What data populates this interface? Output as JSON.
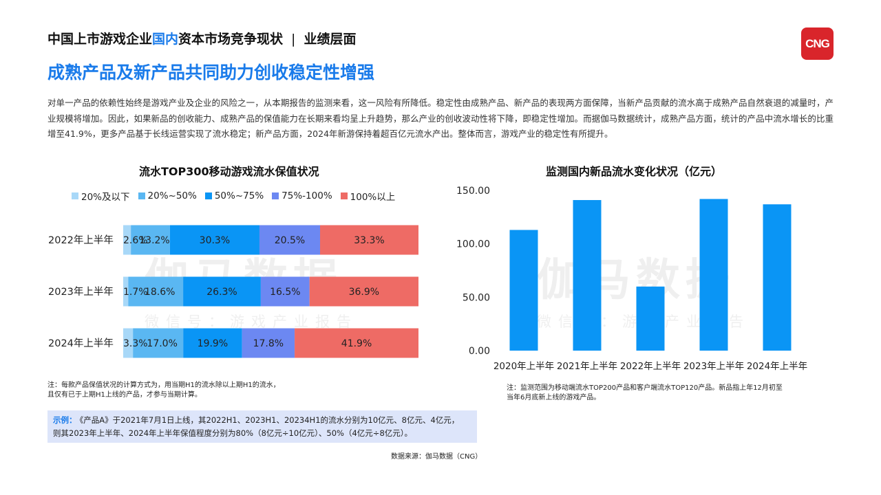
{
  "header": {
    "title_part1": "中国上市游戏企业",
    "title_highlight": "国内",
    "title_part2": "资本市场竞争现状",
    "separator": "|",
    "section": "业绩层面",
    "subtitle": "成熟产品及新产品共同助力创收稳定性增强",
    "logo_text": "CNG"
  },
  "intro": "对单一产品的依赖性始终是游戏产业及企业的风险之一，从本期报告的监测来看，这一风险有所降低。稳定性由成熟产品、新产品的表现两方面保障，当新产品贡献的流水高于成熟产品自然衰退的减量时，产业规模将增加。因此，如果新品的创收能力、成熟产品的保值能力在长期来看均呈上升趋势，那么产业的创收波动性将下降，即稳定性增加。而据伽马数据统计，成熟产品方面，统计的产品中流水增长的比重增至41.9%，更多产品基于长线运营实现了流水稳定；新产品方面，2024年新游保持着超百亿元流水产出。整体而言，游戏产业的稳定性有所提升。",
  "watermark": {
    "main": "伽马数据",
    "sub": "微信号：游戏产业报告"
  },
  "colors": {
    "accent": "#1a7bea",
    "new_product_bar": "#0a95f5",
    "example_bg": "#dde5fa",
    "logo": "#d9252b"
  },
  "chart_data": [
    {
      "type": "bar",
      "orientation": "horizontal",
      "stacked": "percent",
      "title": "流水TOP300移动游戏流水保值状况",
      "categories": [
        "2022年上半年",
        "2023年上半年",
        "2024年上半年"
      ],
      "series": [
        {
          "name": "20%及以下",
          "color": "#a8d8f8",
          "values": [
            2.6,
            1.7,
            3.3
          ],
          "labels": [
            "2.6%",
            "1.7%",
            "3.3%"
          ]
        },
        {
          "name": "20%~50%",
          "color": "#5ab7f2",
          "values": [
            13.2,
            18.6,
            17.0
          ],
          "labels": [
            "13.2%",
            "18.6%",
            "17.0%"
          ]
        },
        {
          "name": "50%~75%",
          "color": "#0a95f5",
          "values": [
            30.3,
            26.3,
            19.9
          ],
          "labels": [
            "30.3%",
            "26.3%",
            "19.9%"
          ]
        },
        {
          "name": "75%-100%",
          "color": "#6c88f2",
          "values": [
            20.5,
            16.5,
            17.8
          ],
          "labels": [
            "20.5%",
            "16.5%",
            "17.8%"
          ]
        },
        {
          "name": "100%以上",
          "color": "#ee6b65",
          "values": [
            33.3,
            36.9,
            41.9
          ],
          "labels": [
            "33.3%",
            "36.9%",
            "41.9%"
          ]
        }
      ],
      "legend_position": "top",
      "note": [
        "注：每款产品保值状况的计算方式为，用当期H1的流水除以上期H1的流水，",
        "且仅有已于上期H1上线的产品，才参与当期计算。"
      ]
    },
    {
      "type": "bar",
      "title": "监测国内新品流水变化状况（亿元）",
      "categories": [
        "2020年上半年",
        "2021年上半年",
        "2022年上半年",
        "2023年上半年",
        "2024年上半年"
      ],
      "values": [
        113,
        141,
        60,
        142,
        137
      ],
      "ylim": [
        0,
        150
      ],
      "yticks": [
        "0.00",
        "50.00",
        "100.00",
        "150.00"
      ],
      "grid": false,
      "note": [
        "注：监测范围为移动端流水TOP200产品和客户端流水TOP120产品。新品指上年12月初至",
        "当年6月底新上线的游戏产品。"
      ]
    }
  ],
  "example": {
    "label": "示例：",
    "line1": "《产品A》于2021年7月1日上线，其2022H1、2023H1、20234H1的流水分别为10亿元、8亿元、4亿元，",
    "line2": "则其2023年上半年、2024年上半年保值程度分别为80%（8亿元÷10亿元）、50%（4亿元÷8亿元）。"
  },
  "source": "数据来源：伽马数据（CNG）"
}
